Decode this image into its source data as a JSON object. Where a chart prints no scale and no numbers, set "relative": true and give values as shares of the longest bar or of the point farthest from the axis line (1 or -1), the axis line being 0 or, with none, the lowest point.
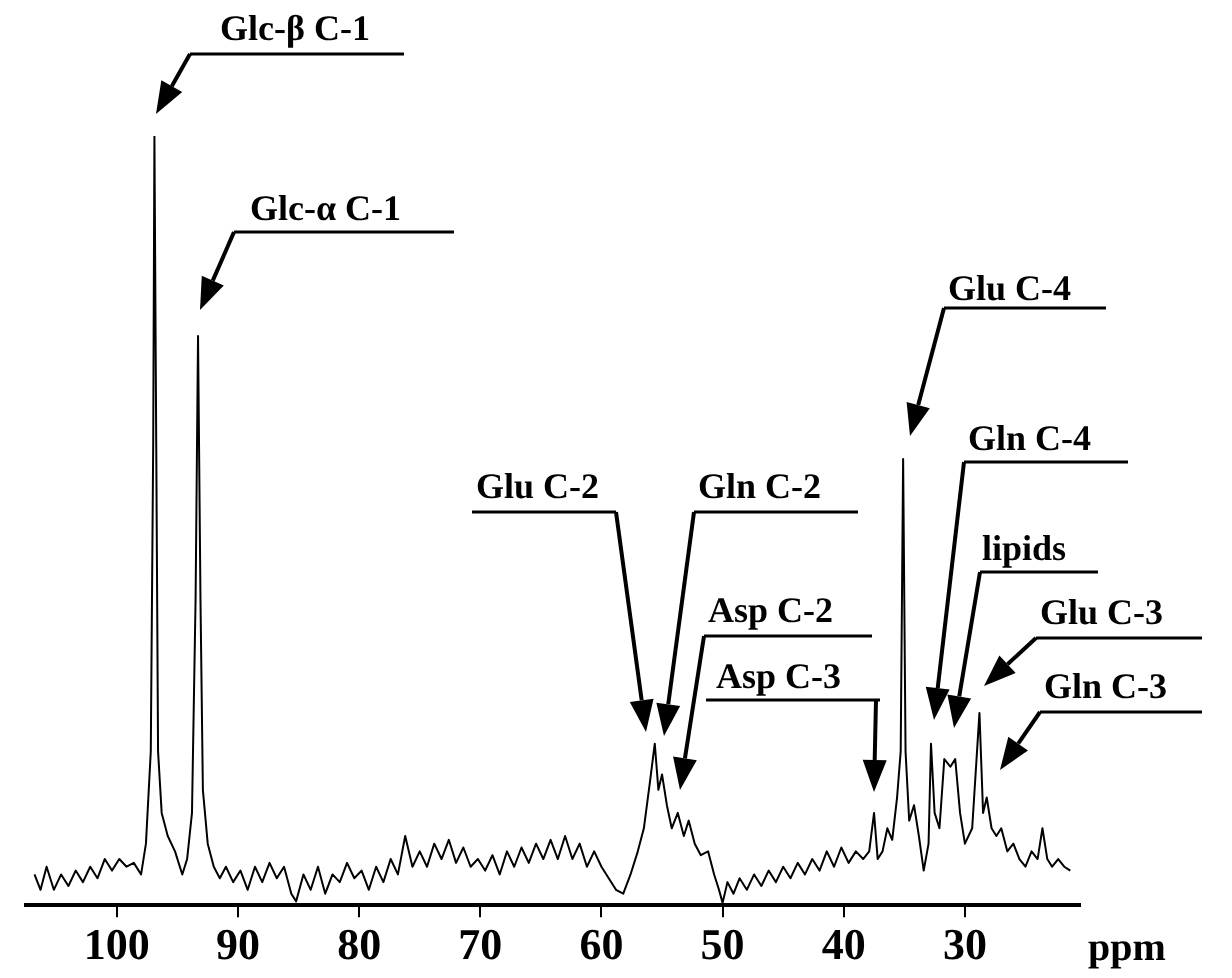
{
  "chart_data": {
    "type": "line",
    "relative": true,
    "xlabel": "ppm",
    "xlim": [
      107.5,
      20.5
    ],
    "xticks": [
      100,
      90,
      80,
      70,
      60,
      50,
      40,
      30
    ],
    "color": "#000000",
    "legend": false,
    "x": [
      106.8,
      106.3,
      105.8,
      105.2,
      104.6,
      104,
      103.4,
      102.8,
      102.2,
      101.6,
      101,
      100.4,
      99.8,
      99.2,
      98.6,
      98,
      97.6,
      97.2,
      97,
      96.9,
      96.75,
      96.6,
      96.3,
      95.8,
      95.2,
      94.6,
      94.2,
      93.8,
      93.5,
      93.3,
      93.1,
      92.9,
      92.5,
      92,
      91.5,
      91,
      90.4,
      89.8,
      89.2,
      88.6,
      88,
      87.4,
      86.8,
      86.2,
      85.6,
      85.2,
      84.6,
      84,
      83.4,
      82.8,
      82.2,
      81.6,
      81,
      80.4,
      79.8,
      79.2,
      78.6,
      78,
      77.4,
      76.8,
      76.2,
      75.6,
      75,
      74.4,
      73.8,
      73.2,
      72.6,
      72,
      71.4,
      70.8,
      70.2,
      69.6,
      69,
      68.4,
      67.8,
      67.2,
      66.6,
      66,
      65.4,
      64.8,
      64.2,
      63.6,
      63,
      62.4,
      61.8,
      61.2,
      60.6,
      60,
      59.4,
      58.8,
      58.2,
      57.6,
      57,
      56.5,
      56,
      55.6,
      55.3,
      55,
      54.6,
      54.2,
      53.7,
      53.2,
      52.8,
      52.3,
      51.8,
      51.2,
      50.7,
      50.3,
      50,
      49.6,
      49.1,
      48.6,
      48,
      47.4,
      46.8,
      46.2,
      45.6,
      45,
      44.4,
      43.8,
      43.2,
      42.6,
      42,
      41.4,
      40.8,
      40.2,
      39.6,
      39,
      38.4,
      37.9,
      37.5,
      37.2,
      36.8,
      36.4,
      36,
      35.6,
      35.3,
      35.1,
      34.9,
      34.6,
      34.2,
      33.8,
      33.4,
      33,
      32.8,
      32.5,
      32.1,
      31.7,
      31.2,
      30.8,
      30.4,
      30,
      29.4,
      28.8,
      28.5,
      28.2,
      27.8,
      27.4,
      27,
      26.5,
      26,
      25.5,
      25,
      24.5,
      24,
      23.6,
      23.2,
      22.8,
      22.3,
      21.8,
      21.3
    ],
    "values": [
      0.04,
      0.02,
      0.05,
      0.02,
      0.04,
      0.025,
      0.045,
      0.03,
      0.05,
      0.035,
      0.06,
      0.045,
      0.06,
      0.05,
      0.055,
      0.04,
      0.08,
      0.2,
      0.6,
      1,
      0.6,
      0.2,
      0.12,
      0.09,
      0.07,
      0.04,
      0.06,
      0.12,
      0.4,
      0.74,
      0.4,
      0.15,
      0.08,
      0.05,
      0.035,
      0.05,
      0.03,
      0.045,
      0.02,
      0.05,
      0.03,
      0.055,
      0.035,
      0.05,
      0.015,
      0.005,
      0.04,
      0.02,
      0.05,
      0.015,
      0.04,
      0.03,
      0.055,
      0.035,
      0.045,
      0.02,
      0.05,
      0.03,
      0.06,
      0.04,
      0.09,
      0.05,
      0.07,
      0.05,
      0.08,
      0.06,
      0.085,
      0.055,
      0.075,
      0.05,
      0.06,
      0.045,
      0.065,
      0.04,
      0.07,
      0.05,
      0.075,
      0.055,
      0.08,
      0.06,
      0.085,
      0.06,
      0.09,
      0.06,
      0.08,
      0.05,
      0.07,
      0.05,
      0.035,
      0.02,
      0.015,
      0.04,
      0.07,
      0.1,
      0.16,
      0.21,
      0.15,
      0.17,
      0.13,
      0.1,
      0.12,
      0.09,
      0.11,
      0.08,
      0.065,
      0.07,
      0.04,
      0.02,
      0.003,
      0.03,
      0.015,
      0.035,
      0.02,
      0.04,
      0.025,
      0.045,
      0.03,
      0.05,
      0.035,
      0.055,
      0.04,
      0.06,
      0.045,
      0.07,
      0.05,
      0.075,
      0.055,
      0.07,
      0.06,
      0.07,
      0.12,
      0.06,
      0.07,
      0.1,
      0.085,
      0.14,
      0.2,
      0.58,
      0.2,
      0.11,
      0.13,
      0.09,
      0.045,
      0.08,
      0.21,
      0.12,
      0.1,
      0.19,
      0.18,
      0.19,
      0.12,
      0.08,
      0.1,
      0.25,
      0.12,
      0.14,
      0.1,
      0.09,
      0.1,
      0.07,
      0.08,
      0.06,
      0.05,
      0.07,
      0.06,
      0.1,
      0.06,
      0.05,
      0.06,
      0.05,
      0.045
    ],
    "annotations": [
      "Glc-β C-1",
      "Glc-α C-1",
      "Glu C-2",
      "Gln C-2",
      "Asp C-2",
      "Asp C-3",
      "Glu C-4",
      "Gln C-4",
      "lipids",
      "Glu C-3",
      "Gln C-3"
    ]
  }
}
